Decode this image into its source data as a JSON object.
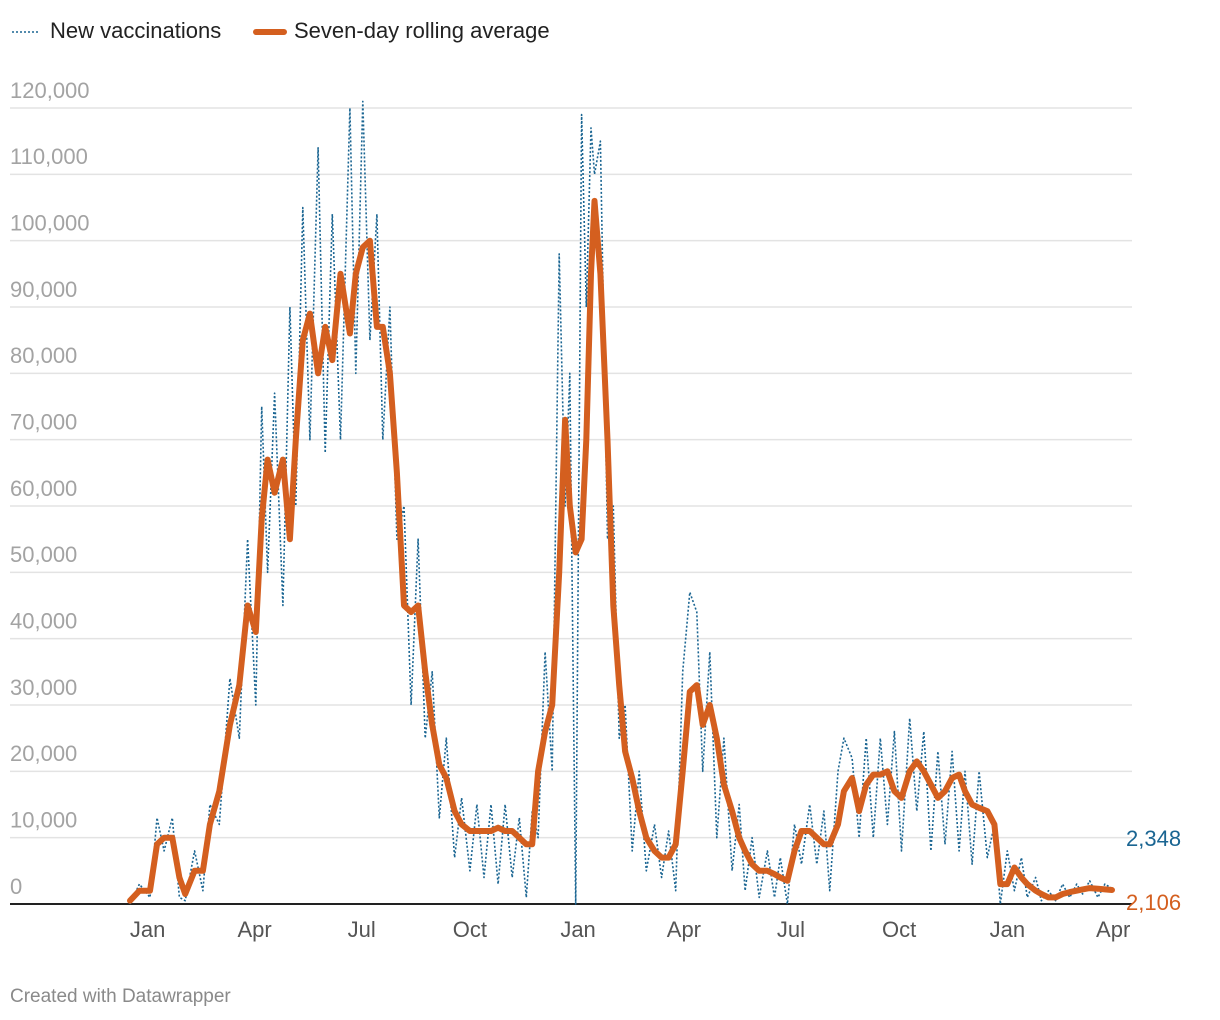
{
  "chart_data": {
    "type": "line",
    "credit": "Created with Datawrapper",
    "x": [
      -15,
      -7,
      2,
      8,
      14,
      21,
      27,
      32,
      40,
      47,
      53,
      61,
      70,
      78,
      85,
      92,
      97,
      102,
      108,
      115,
      121,
      126,
      132,
      138,
      145,
      151,
      157,
      164,
      172,
      177,
      183,
      189,
      195,
      200,
      206,
      212,
      218,
      224,
      230,
      236,
      242,
      248,
      254,
      261,
      267,
      274,
      280,
      286,
      292,
      298,
      304,
      310,
      316,
      322,
      327,
      332,
      338,
      344,
      350,
      355,
      359,
      364,
      369,
      373,
      377,
      380,
      385,
      391,
      396,
      401,
      406,
      412,
      418,
      424,
      431,
      437,
      443,
      449,
      455,
      461,
      467,
      472,
      478,
      484,
      490,
      497,
      503,
      508,
      514,
      520,
      527,
      533,
      538,
      544,
      550,
      556,
      563,
      569,
      575,
      580,
      587,
      592,
      599,
      605,
      611,
      617,
      623,
      629,
      635,
      641,
      648,
      654,
      660,
      666,
      672,
      678,
      684,
      690,
      695,
      701,
      707,
      714,
      720,
      725,
      731,
      737,
      743,
      748,
      755,
      760,
      766,
      772,
      778,
      784,
      790,
      795,
      801,
      808,
      814,
      820
    ],
    "series": [
      {
        "name": "New vaccinations",
        "color": "#1a6592",
        "style": "dotted",
        "values": [
          0,
          3000,
          1000,
          13000,
          8000,
          13000,
          1000,
          500,
          8000,
          2000,
          15000,
          12000,
          34000,
          25000,
          55000,
          30000,
          75000,
          50000,
          77000,
          45000,
          90000,
          60000,
          105000,
          70000,
          114000,
          68000,
          104000,
          70000,
          120000,
          80000,
          121000,
          85000,
          104000,
          70000,
          90000,
          55000,
          60000,
          30000,
          55000,
          25000,
          35000,
          13000,
          25000,
          7000,
          16000,
          5000,
          15000,
          4000,
          15000,
          3000,
          15000,
          4000,
          13000,
          1000,
          14000,
          10000,
          38000,
          20000,
          98000,
          60000,
          80000,
          0,
          119000,
          90000,
          117000,
          110000,
          115000,
          55000,
          60000,
          25000,
          30000,
          8000,
          20000,
          5000,
          12000,
          4000,
          11000,
          2000,
          35000,
          47000,
          44000,
          20000,
          38000,
          10000,
          25000,
          5000,
          15000,
          2000,
          10000,
          1000,
          8000,
          1000,
          7000,
          0,
          12000,
          6000,
          15000,
          6000,
          14000,
          2000,
          20000,
          25000,
          22000,
          10000,
          25000,
          10000,
          25000,
          12000,
          26000,
          8000,
          28000,
          14000,
          26000,
          8000,
          23000,
          9000,
          23000,
          8000,
          20000,
          6000,
          20000,
          7000,
          12000,
          0,
          8000,
          2000,
          7000,
          1000,
          4000,
          500,
          2000,
          500,
          3000,
          1000,
          3000,
          1500,
          3500,
          1000,
          3000,
          2348
        ],
        "value_labels": [
          null,
          null,
          null,
          null,
          null,
          null,
          null,
          null,
          null,
          null,
          null,
          null,
          null,
          null,
          null,
          null,
          null,
          null,
          null,
          null,
          null,
          null,
          null,
          null,
          null,
          null,
          null,
          null,
          null,
          null,
          null,
          null,
          null,
          null,
          null,
          null,
          null,
          null,
          null,
          null,
          null,
          null,
          null,
          null,
          null,
          null,
          null,
          null,
          null,
          null,
          null,
          null,
          null,
          null,
          null,
          null,
          null,
          null,
          null,
          null,
          null,
          null,
          null,
          null,
          null,
          null,
          null,
          null,
          null,
          null,
          null,
          null,
          null,
          null,
          null,
          null,
          null,
          null,
          null,
          null,
          null,
          null,
          null,
          null,
          null,
          null,
          null,
          null,
          null,
          null,
          null,
          null,
          null,
          null,
          null,
          null,
          null,
          null,
          null,
          null,
          null,
          null,
          null,
          null,
          null,
          null,
          null,
          null,
          null,
          null,
          null,
          null,
          null,
          null,
          null,
          null,
          null,
          null,
          null,
          null,
          null,
          null,
          null,
          null,
          null,
          null,
          null,
          null,
          null,
          null,
          null,
          null,
          null,
          null,
          null,
          null,
          null,
          null,
          null,
          "2,348"
        ]
      },
      {
        "name": "Seven-day rolling average",
        "color": "#d45f1f",
        "style": "solid",
        "values": [
          500,
          2000,
          2000,
          9000,
          10000,
          10000,
          4000,
          1500,
          5000,
          5000,
          12000,
          17000,
          27000,
          33000,
          45000,
          41000,
          58000,
          67000,
          62000,
          67000,
          55000,
          70000,
          85000,
          89000,
          80000,
          87000,
          82000,
          95000,
          86000,
          95000,
          99000,
          100000,
          87000,
          87000,
          80000,
          65000,
          45000,
          44000,
          45000,
          35000,
          27000,
          21000,
          19000,
          14000,
          12000,
          11000,
          11000,
          11000,
          11000,
          11500,
          11000,
          11000,
          10000,
          9000,
          9000,
          20000,
          26000,
          30000,
          50000,
          73000,
          60000,
          53000,
          55000,
          70000,
          95000,
          106000,
          95000,
          70000,
          45000,
          33000,
          23000,
          19000,
          14000,
          10000,
          8000,
          7000,
          7000,
          9000,
          20000,
          32000,
          33000,
          27000,
          30000,
          25000,
          18000,
          14000,
          10000,
          8000,
          6000,
          5000,
          5000,
          4500,
          4000,
          3500,
          8000,
          11000,
          11000,
          10000,
          9000,
          9000,
          12000,
          17000,
          19000,
          14000,
          18000,
          19500,
          19500,
          20000,
          17000,
          16000,
          20000,
          21500,
          20000,
          18000,
          16000,
          17000,
          19000,
          19500,
          17000,
          15000,
          14500,
          14000,
          12000,
          3000,
          3000,
          5500,
          4000,
          3000,
          2000,
          1500,
          1000,
          1000,
          1500,
          1800,
          2000,
          2200,
          2400,
          2300,
          2200,
          2106
        ],
        "value_labels": [
          null,
          null,
          null,
          null,
          null,
          null,
          null,
          null,
          null,
          null,
          null,
          null,
          null,
          null,
          null,
          null,
          null,
          null,
          null,
          null,
          null,
          null,
          null,
          null,
          null,
          null,
          null,
          null,
          null,
          null,
          null,
          null,
          null,
          null,
          null,
          null,
          null,
          null,
          null,
          null,
          null,
          null,
          null,
          null,
          null,
          null,
          null,
          null,
          null,
          null,
          null,
          null,
          null,
          null,
          null,
          null,
          null,
          null,
          null,
          null,
          null,
          null,
          null,
          null,
          null,
          null,
          null,
          null,
          null,
          null,
          null,
          null,
          null,
          null,
          null,
          null,
          null,
          null,
          null,
          null,
          null,
          null,
          null,
          null,
          null,
          null,
          null,
          null,
          null,
          null,
          null,
          null,
          null,
          null,
          null,
          null,
          null,
          null,
          null,
          null,
          null,
          null,
          null,
          null,
          null,
          null,
          null,
          null,
          null,
          null,
          null,
          null,
          null,
          null,
          null,
          null,
          null,
          null,
          null,
          null,
          null,
          null,
          null,
          null,
          null,
          null,
          null,
          null,
          null,
          null,
          null,
          null,
          null,
          null,
          null,
          null,
          null,
          null,
          null,
          "2,106"
        ]
      }
    ],
    "xlim": [
      -117,
      837
    ],
    "xticks": [
      {
        "value": 0,
        "label": "Jan"
      },
      {
        "value": 91,
        "label": "Apr"
      },
      {
        "value": 182,
        "label": "Jul"
      },
      {
        "value": 274,
        "label": "Oct"
      },
      {
        "value": 366,
        "label": "Jan"
      },
      {
        "value": 456,
        "label": "Apr"
      },
      {
        "value": 547,
        "label": "Jul"
      },
      {
        "value": 639,
        "label": "Oct"
      },
      {
        "value": 731,
        "label": "Jan"
      },
      {
        "value": 821,
        "label": "Apr"
      }
    ],
    "ylim": [
      0,
      120000
    ],
    "yticks": [
      0,
      {
        "value": 10000,
        "label": "10,000"
      },
      {
        "value": 20000,
        "label": "20,000"
      },
      {
        "value": 30000,
        "label": "30,000"
      },
      {
        "value": 40000,
        "label": "40,000"
      },
      {
        "value": 50000,
        "label": "50,000"
      },
      {
        "value": 60000,
        "label": "60,000"
      },
      {
        "value": 70000,
        "label": "70,000"
      },
      {
        "value": 80000,
        "label": "80,000"
      },
      {
        "value": 90000,
        "label": "90,000"
      },
      {
        "value": 100000,
        "label": "100,000"
      },
      {
        "value": 110000,
        "label": "110,000"
      },
      {
        "value": 120000,
        "label": "120,000"
      }
    ],
    "grid": true
  }
}
